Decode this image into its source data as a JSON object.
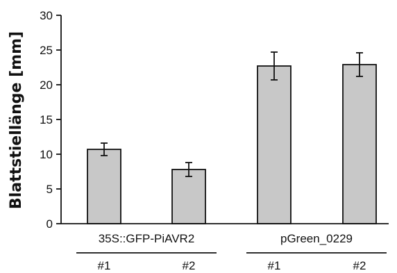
{
  "chart_data": {
    "type": "bar",
    "ylabel": "Blattstiellänge [mm]",
    "ylim": [
      0,
      30
    ],
    "yticks": [
      "0",
      "5",
      "10",
      "15",
      "20",
      "25",
      "30"
    ],
    "groups": [
      {
        "name": "35S::GFP-PiAVR2",
        "categories": [
          "#1",
          "#2"
        ]
      },
      {
        "name": "pGreen_0229",
        "categories": [
          "#1",
          "#2"
        ]
      }
    ],
    "values": [
      10.7,
      7.8,
      22.7,
      22.9
    ],
    "errors": [
      0.9,
      1.0,
      2.0,
      1.7
    ],
    "bar_color": "#c8c8c8",
    "edge_color": "#111111",
    "grid": false
  }
}
